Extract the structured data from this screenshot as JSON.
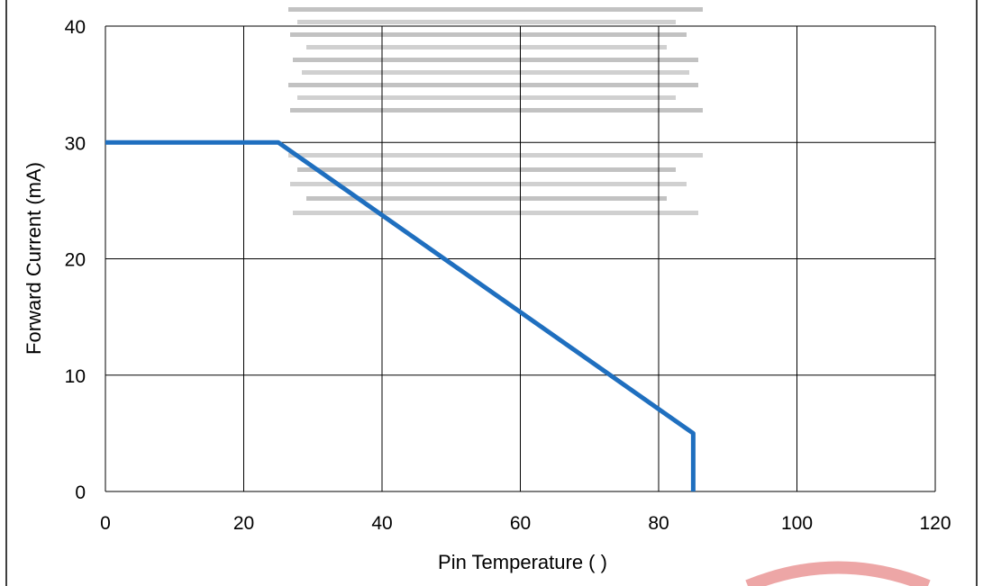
{
  "chart_data": {
    "type": "line",
    "xlabel": "Pin Temperature (    )",
    "ylabel": "Forward Current (mA)",
    "xlim": [
      0,
      120
    ],
    "ylim": [
      0,
      40
    ],
    "xticks": [
      0,
      20,
      40,
      60,
      80,
      100,
      120
    ],
    "yticks": [
      0,
      10,
      20,
      30,
      40
    ],
    "grid": true,
    "series": [
      {
        "color": "#1f6fbf",
        "x": [
          0,
          25,
          85,
          85
        ],
        "y": [
          30,
          30,
          5,
          0
        ]
      }
    ]
  },
  "colors": {
    "line": "#1f6fbf",
    "grid": "#000000",
    "watermark": "#e89090"
  },
  "icons": [
    "scanned-overlay-artifact",
    "stamp-watermark"
  ]
}
